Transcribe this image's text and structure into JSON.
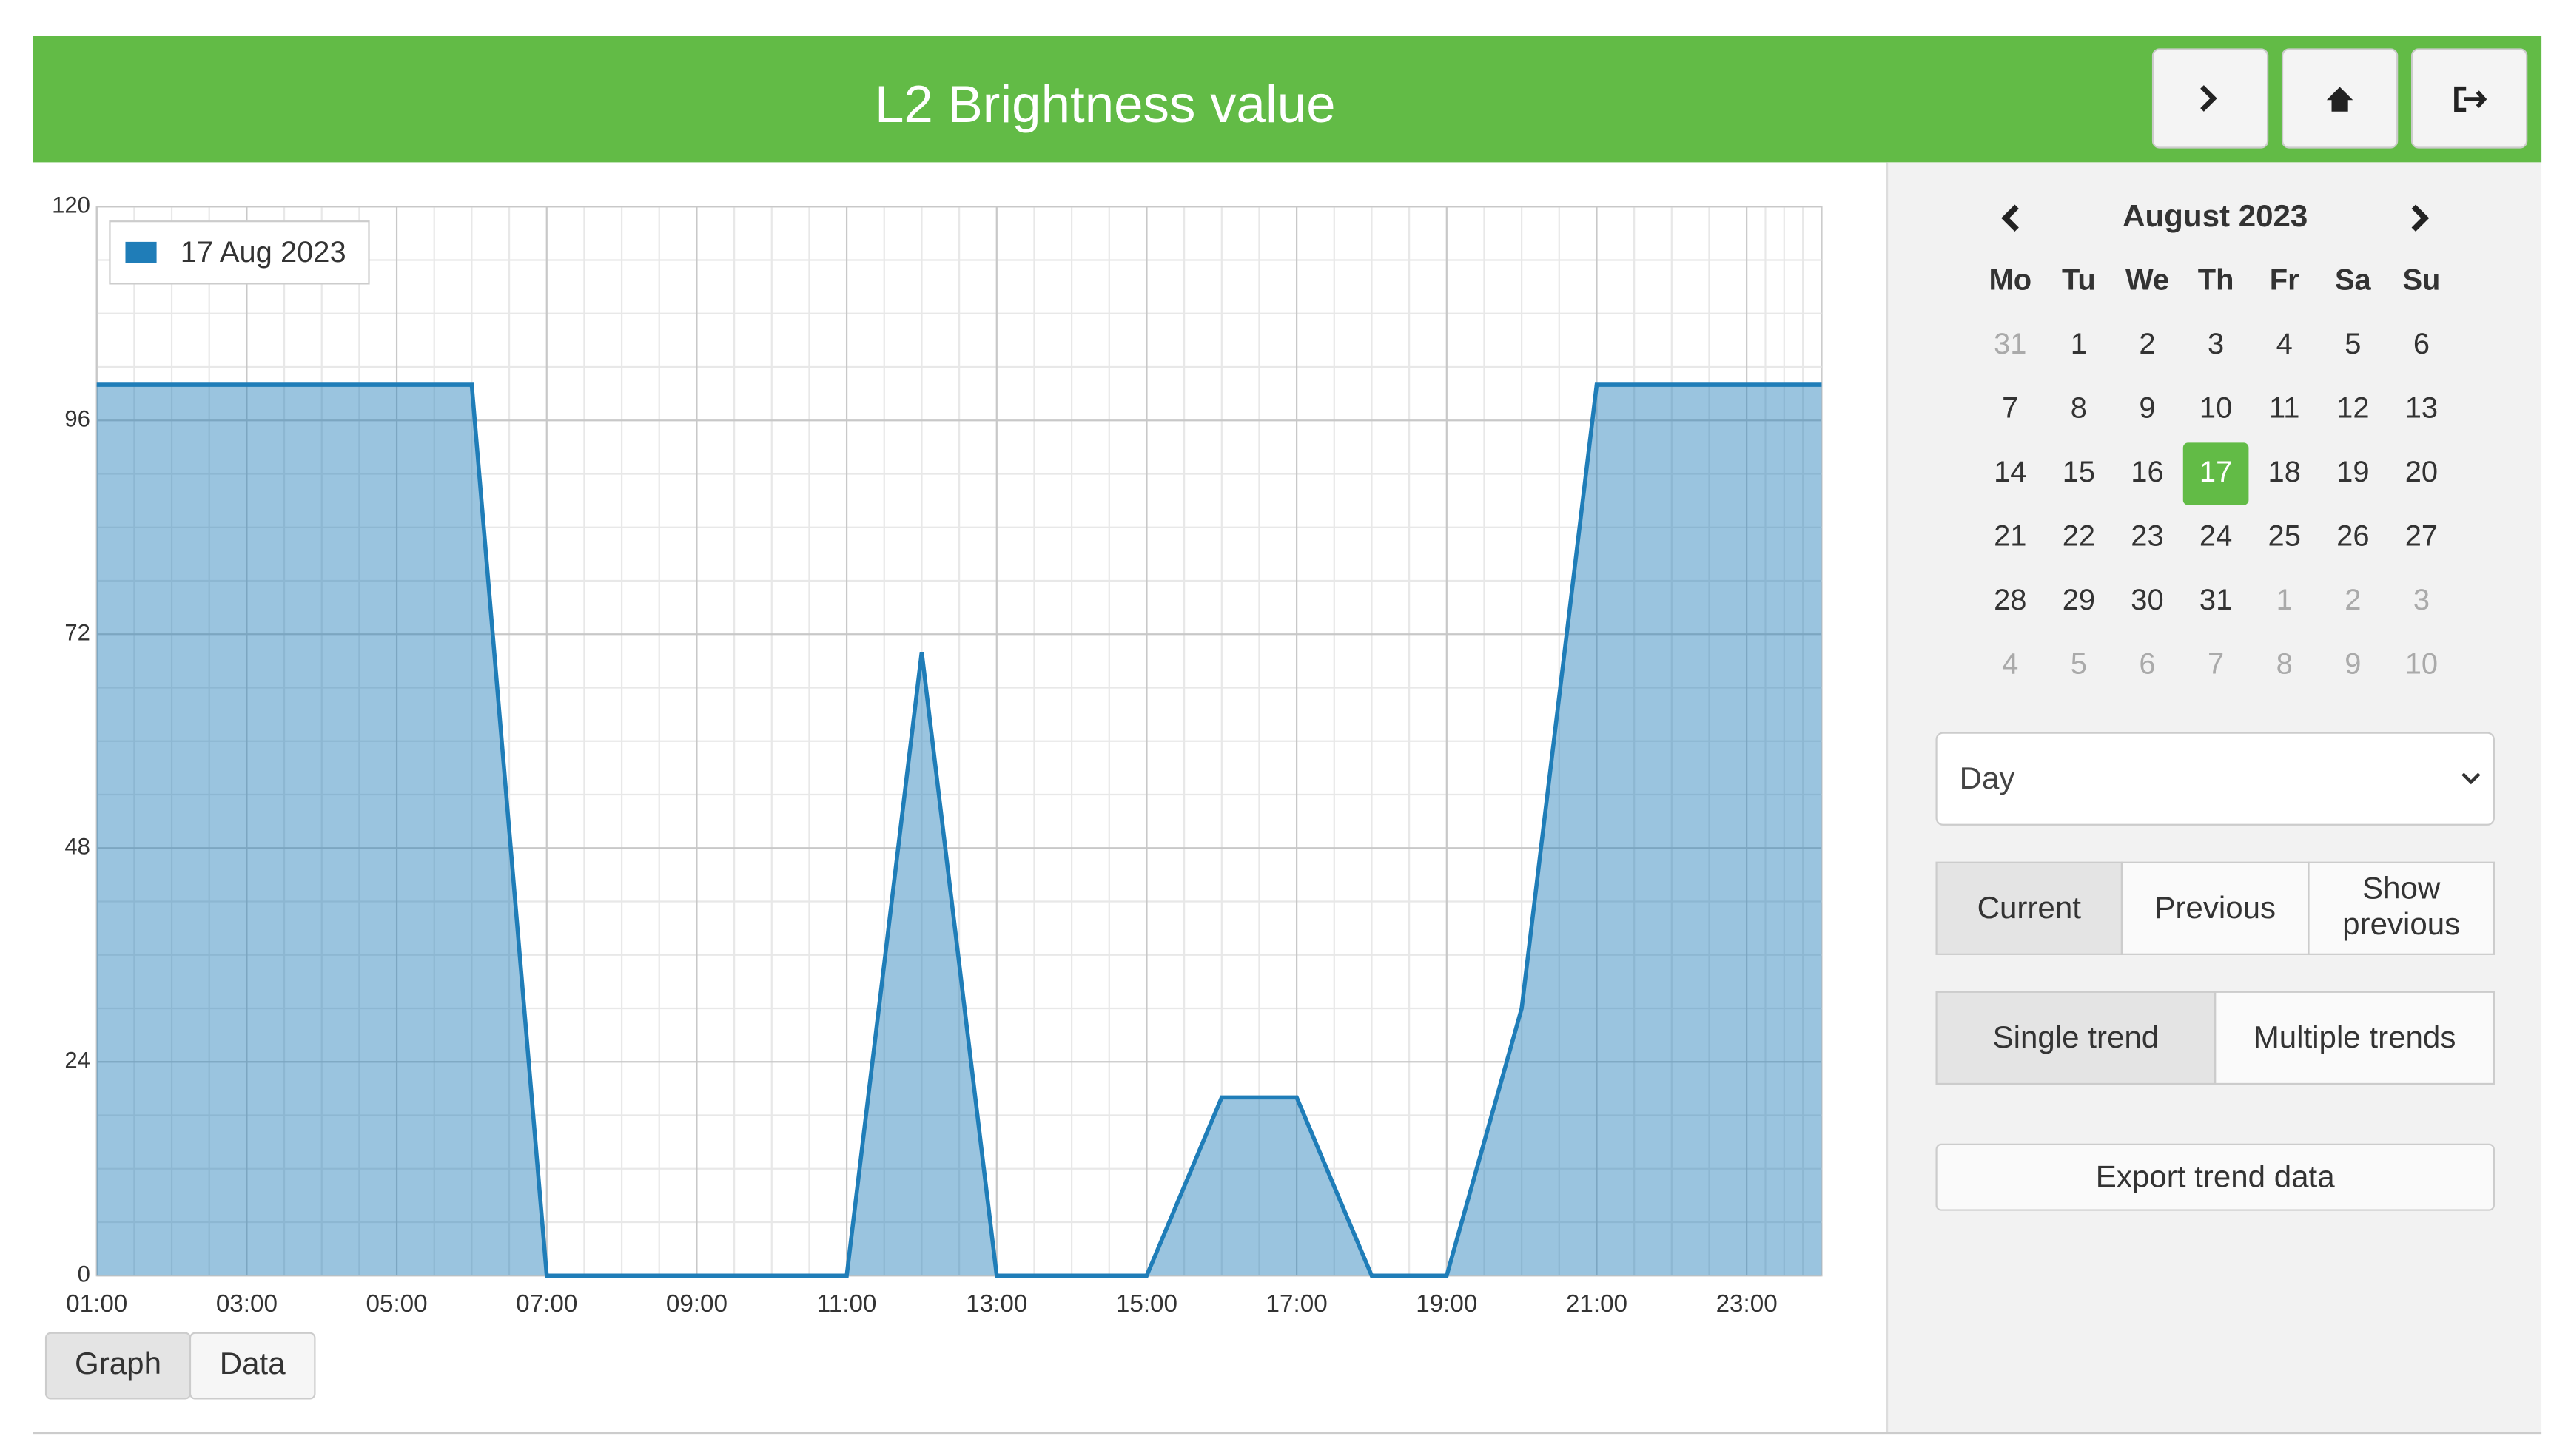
{
  "header": {
    "title": "L2 Brightness value"
  },
  "chart_data": {
    "type": "area",
    "x": [
      1,
      2,
      3,
      4,
      5,
      6,
      7,
      8,
      9,
      10,
      11,
      12,
      13,
      14,
      15,
      16,
      17,
      18,
      19,
      20,
      21,
      22,
      23,
      24
    ],
    "series": [
      {
        "name": "17 Aug 2023",
        "color": "#1f7db8",
        "values": [
          100,
          100,
          100,
          100,
          100,
          100,
          0,
          0,
          0,
          0,
          0,
          70,
          0,
          0,
          0,
          20,
          20,
          0,
          0,
          30,
          100,
          100,
          100,
          100
        ]
      }
    ],
    "xlim": [
      1,
      24
    ],
    "xticks": [
      {
        "value": 1,
        "label": "01:00"
      },
      {
        "value": 3,
        "label": "03:00"
      },
      {
        "value": 5,
        "label": "05:00"
      },
      {
        "value": 7,
        "label": "07:00"
      },
      {
        "value": 9,
        "label": "09:00"
      },
      {
        "value": 11,
        "label": "11:00"
      },
      {
        "value": 13,
        "label": "13:00"
      },
      {
        "value": 15,
        "label": "15:00"
      },
      {
        "value": 17,
        "label": "17:00"
      },
      {
        "value": 19,
        "label": "19:00"
      },
      {
        "value": 21,
        "label": "21:00"
      },
      {
        "value": 23,
        "label": "23:00"
      }
    ],
    "ylim": [
      0,
      120
    ],
    "yticks": [
      0,
      24,
      48,
      72,
      96,
      120
    ],
    "grid": true,
    "legend": "top-left"
  },
  "view_toggle": [
    "Graph",
    "Data"
  ],
  "calendar": {
    "month": "August 2023",
    "weekdays": [
      "Mo",
      "Tu",
      "We",
      "Th",
      "Fr",
      "Sa",
      "Su"
    ],
    "weeks": [
      [
        "31",
        "1",
        "2",
        "3",
        "4",
        "5",
        "6"
      ],
      [
        "7",
        "8",
        "9",
        "10",
        "11",
        "12",
        "13"
      ],
      [
        "14",
        "15",
        "16",
        "17",
        "18",
        "19",
        "20"
      ],
      [
        "21",
        "22",
        "23",
        "24",
        "25",
        "26",
        "27"
      ],
      [
        "28",
        "29",
        "30",
        "31",
        "1",
        "2",
        "3"
      ],
      [
        "4",
        "5",
        "6",
        "7",
        "8",
        "9",
        "10"
      ]
    ],
    "selected": "17"
  },
  "period_select": "Day",
  "period_buttons": [
    "Current",
    "Previous",
    "Show previous"
  ],
  "trend_buttons": [
    "Single trend",
    "Multiple trends"
  ],
  "export_button": "Export trend data"
}
